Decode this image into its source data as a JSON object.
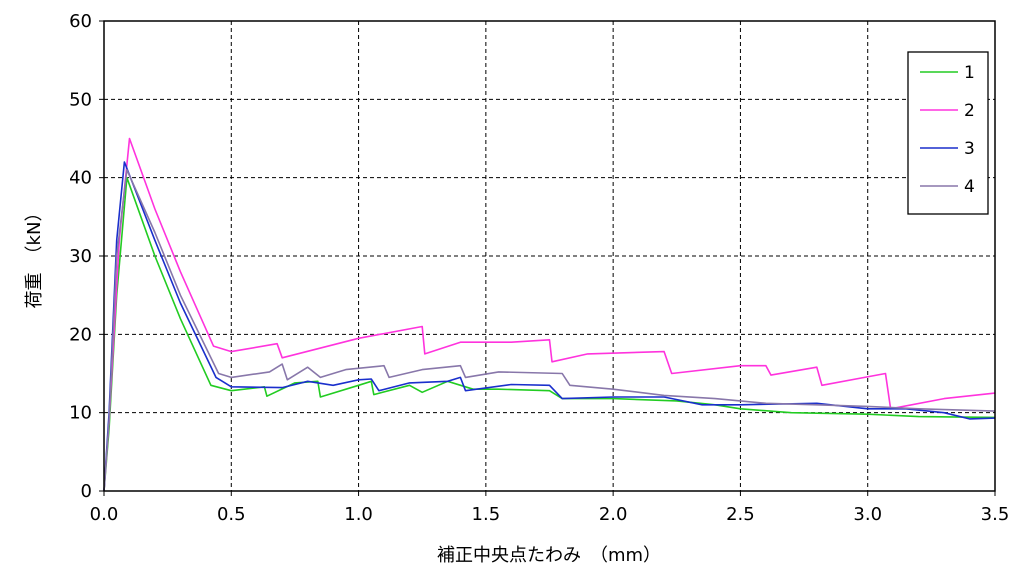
{
  "chart_data": {
    "type": "line",
    "xlabel": "補正中央点たわみ　（mm）",
    "ylabel": "荷重　（kN）",
    "xlim": [
      0,
      3.5
    ],
    "ylim": [
      0,
      60
    ],
    "x_ticks": [
      "0.0",
      "0.5",
      "1.0",
      "1.5",
      "2.0",
      "2.5",
      "3.0",
      "3.5"
    ],
    "y_ticks": [
      "0",
      "10",
      "20",
      "30",
      "40",
      "50",
      "60"
    ],
    "grid": true,
    "legend_position": "top-right",
    "colors": {
      "1": "#22cc22",
      "2": "#ff33dd",
      "3": "#1a2fcc",
      "4": "#8877aa"
    },
    "series": [
      {
        "name": "1",
        "points": [
          [
            0,
            0
          ],
          [
            0.02,
            8
          ],
          [
            0.05,
            25
          ],
          [
            0.09,
            40
          ],
          [
            0.2,
            30
          ],
          [
            0.3,
            22
          ],
          [
            0.42,
            13.5
          ],
          [
            0.5,
            12.8
          ],
          [
            0.63,
            13.3
          ],
          [
            0.64,
            12.1
          ],
          [
            0.75,
            13.8
          ],
          [
            0.84,
            14.0
          ],
          [
            0.85,
            12.0
          ],
          [
            1.0,
            13.5
          ],
          [
            1.05,
            14.0
          ],
          [
            1.06,
            12.3
          ],
          [
            1.2,
            13.5
          ],
          [
            1.25,
            12.6
          ],
          [
            1.35,
            14.0
          ],
          [
            1.45,
            13.0
          ],
          [
            1.55,
            13.0
          ],
          [
            1.75,
            12.8
          ],
          [
            1.8,
            11.8
          ],
          [
            2.0,
            11.8
          ],
          [
            2.25,
            11.5
          ],
          [
            2.4,
            11.0
          ],
          [
            2.5,
            10.5
          ],
          [
            2.7,
            10.0
          ],
          [
            3.0,
            9.8
          ],
          [
            3.2,
            9.5
          ],
          [
            3.5,
            9.4
          ]
        ]
      },
      {
        "name": "2",
        "points": [
          [
            0,
            0
          ],
          [
            0.02,
            9
          ],
          [
            0.06,
            32
          ],
          [
            0.1,
            45
          ],
          [
            0.2,
            36
          ],
          [
            0.3,
            28
          ],
          [
            0.43,
            18.5
          ],
          [
            0.5,
            17.8
          ],
          [
            0.68,
            18.8
          ],
          [
            0.7,
            17.0
          ],
          [
            1.0,
            19.5
          ],
          [
            1.25,
            21.0
          ],
          [
            1.26,
            17.5
          ],
          [
            1.4,
            19.0
          ],
          [
            1.6,
            19.0
          ],
          [
            1.75,
            19.3
          ],
          [
            1.76,
            16.5
          ],
          [
            1.9,
            17.5
          ],
          [
            2.2,
            17.8
          ],
          [
            2.23,
            15.0
          ],
          [
            2.5,
            16.0
          ],
          [
            2.6,
            16.0
          ],
          [
            2.62,
            14.8
          ],
          [
            2.8,
            15.8
          ],
          [
            2.82,
            13.5
          ],
          [
            3.07,
            15.0
          ],
          [
            3.09,
            10.5
          ],
          [
            3.3,
            11.8
          ],
          [
            3.5,
            12.5
          ]
        ]
      },
      {
        "name": "3",
        "points": [
          [
            0,
            0
          ],
          [
            0.02,
            10
          ],
          [
            0.05,
            32
          ],
          [
            0.08,
            42
          ],
          [
            0.2,
            32
          ],
          [
            0.3,
            24
          ],
          [
            0.44,
            14.5
          ],
          [
            0.5,
            13.3
          ],
          [
            0.7,
            13.2
          ],
          [
            0.8,
            14.0
          ],
          [
            0.9,
            13.5
          ],
          [
            1.0,
            14.2
          ],
          [
            1.05,
            14.3
          ],
          [
            1.08,
            12.8
          ],
          [
            1.2,
            13.8
          ],
          [
            1.35,
            14.0
          ],
          [
            1.4,
            14.5
          ],
          [
            1.42,
            12.8
          ],
          [
            1.6,
            13.6
          ],
          [
            1.75,
            13.5
          ],
          [
            1.8,
            11.8
          ],
          [
            2.0,
            12.0
          ],
          [
            2.2,
            12.0
          ],
          [
            2.35,
            11.0
          ],
          [
            2.5,
            11.0
          ],
          [
            2.8,
            11.2
          ],
          [
            3.0,
            10.5
          ],
          [
            3.15,
            10.5
          ],
          [
            3.3,
            10.0
          ],
          [
            3.4,
            9.2
          ],
          [
            3.5,
            9.3
          ]
        ]
      },
      {
        "name": "4",
        "points": [
          [
            0,
            0
          ],
          [
            0.02,
            9
          ],
          [
            0.05,
            30
          ],
          [
            0.09,
            41
          ],
          [
            0.2,
            33
          ],
          [
            0.3,
            25
          ],
          [
            0.45,
            15.0
          ],
          [
            0.5,
            14.5
          ],
          [
            0.65,
            15.2
          ],
          [
            0.7,
            16.2
          ],
          [
            0.72,
            14.2
          ],
          [
            0.8,
            15.8
          ],
          [
            0.85,
            14.5
          ],
          [
            0.95,
            15.5
          ],
          [
            1.1,
            16.0
          ],
          [
            1.12,
            14.5
          ],
          [
            1.25,
            15.5
          ],
          [
            1.4,
            16.0
          ],
          [
            1.42,
            14.5
          ],
          [
            1.55,
            15.2
          ],
          [
            1.8,
            15.0
          ],
          [
            1.83,
            13.5
          ],
          [
            2.0,
            13.0
          ],
          [
            2.2,
            12.2
          ],
          [
            2.4,
            11.8
          ],
          [
            2.6,
            11.2
          ],
          [
            2.8,
            11.0
          ],
          [
            3.0,
            10.8
          ],
          [
            3.2,
            10.5
          ],
          [
            3.5,
            10.2
          ]
        ]
      }
    ]
  }
}
